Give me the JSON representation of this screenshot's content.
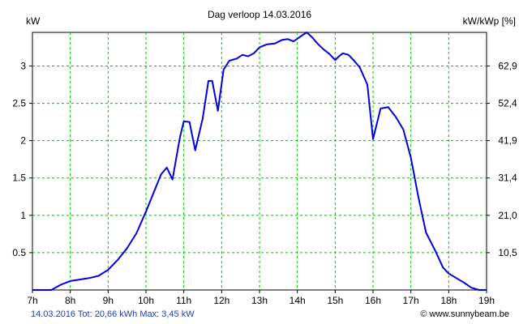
{
  "chart_data": {
    "type": "line",
    "title": "Dag  verloop 14.03.2016",
    "ylabel_left": "kW",
    "ylabel_right": "kW/kWp [%]",
    "xlim": [
      7,
      19
    ],
    "ylim": [
      0,
      3.45
    ],
    "grid": true,
    "x_ticks": [
      7,
      8,
      9,
      10,
      11,
      12,
      13,
      14,
      15,
      16,
      17,
      18,
      19
    ],
    "x_tick_labels": [
      "7h",
      "8h",
      "9h",
      "10h",
      "11h",
      "12h",
      "13h",
      "14h",
      "15h",
      "16h",
      "17h",
      "18h",
      "19h"
    ],
    "y_ticks": [
      0.5,
      1,
      1.5,
      2,
      2.5,
      3
    ],
    "y_tick_labels": [
      "0.5",
      "1",
      "1.5",
      "2",
      "2.5",
      "3"
    ],
    "y2_tick_labels": [
      "10,5",
      "21,0",
      "31,4",
      "41,9",
      "52,4",
      "62,9"
    ],
    "series": [
      {
        "color": "#0000e0",
        "x": [
          7.0,
          7.5,
          7.75,
          8.0,
          8.25,
          8.5,
          8.75,
          9.0,
          9.25,
          9.5,
          9.75,
          10.0,
          10.2,
          10.4,
          10.55,
          10.7,
          10.9,
          11.0,
          11.15,
          11.3,
          11.5,
          11.65,
          11.75,
          11.9,
          12.05,
          12.2,
          12.4,
          12.55,
          12.7,
          12.85,
          13.0,
          13.2,
          13.4,
          13.6,
          13.75,
          13.9,
          14.1,
          14.25,
          14.4,
          14.55,
          14.7,
          14.85,
          15.0,
          15.1,
          15.2,
          15.35,
          15.5,
          15.65,
          15.85,
          16.0,
          16.2,
          16.4,
          16.6,
          16.8,
          17.0,
          17.2,
          17.4,
          17.65,
          17.85,
          18.0,
          18.2,
          18.4,
          18.6,
          18.8,
          19.0
        ],
        "y": [
          0.0,
          0.0,
          0.07,
          0.12,
          0.14,
          0.16,
          0.19,
          0.27,
          0.4,
          0.56,
          0.76,
          1.05,
          1.3,
          1.55,
          1.64,
          1.48,
          2.05,
          2.26,
          2.25,
          1.87,
          2.3,
          2.8,
          2.8,
          2.4,
          2.95,
          3.07,
          3.1,
          3.15,
          3.13,
          3.17,
          3.25,
          3.29,
          3.3,
          3.35,
          3.36,
          3.33,
          3.4,
          3.45,
          3.38,
          3.29,
          3.22,
          3.16,
          3.08,
          3.13,
          3.17,
          3.15,
          3.07,
          2.98,
          2.75,
          2.02,
          2.43,
          2.45,
          2.32,
          2.15,
          1.77,
          1.24,
          0.77,
          0.52,
          0.3,
          0.22,
          0.16,
          0.1,
          0.03,
          0.0,
          0.0
        ]
      }
    ]
  },
  "footer": {
    "left": "14.03.2016 Tot: 20,66 kWh Max: 3,45 kW",
    "right": "© www.sunnybeam.be"
  }
}
